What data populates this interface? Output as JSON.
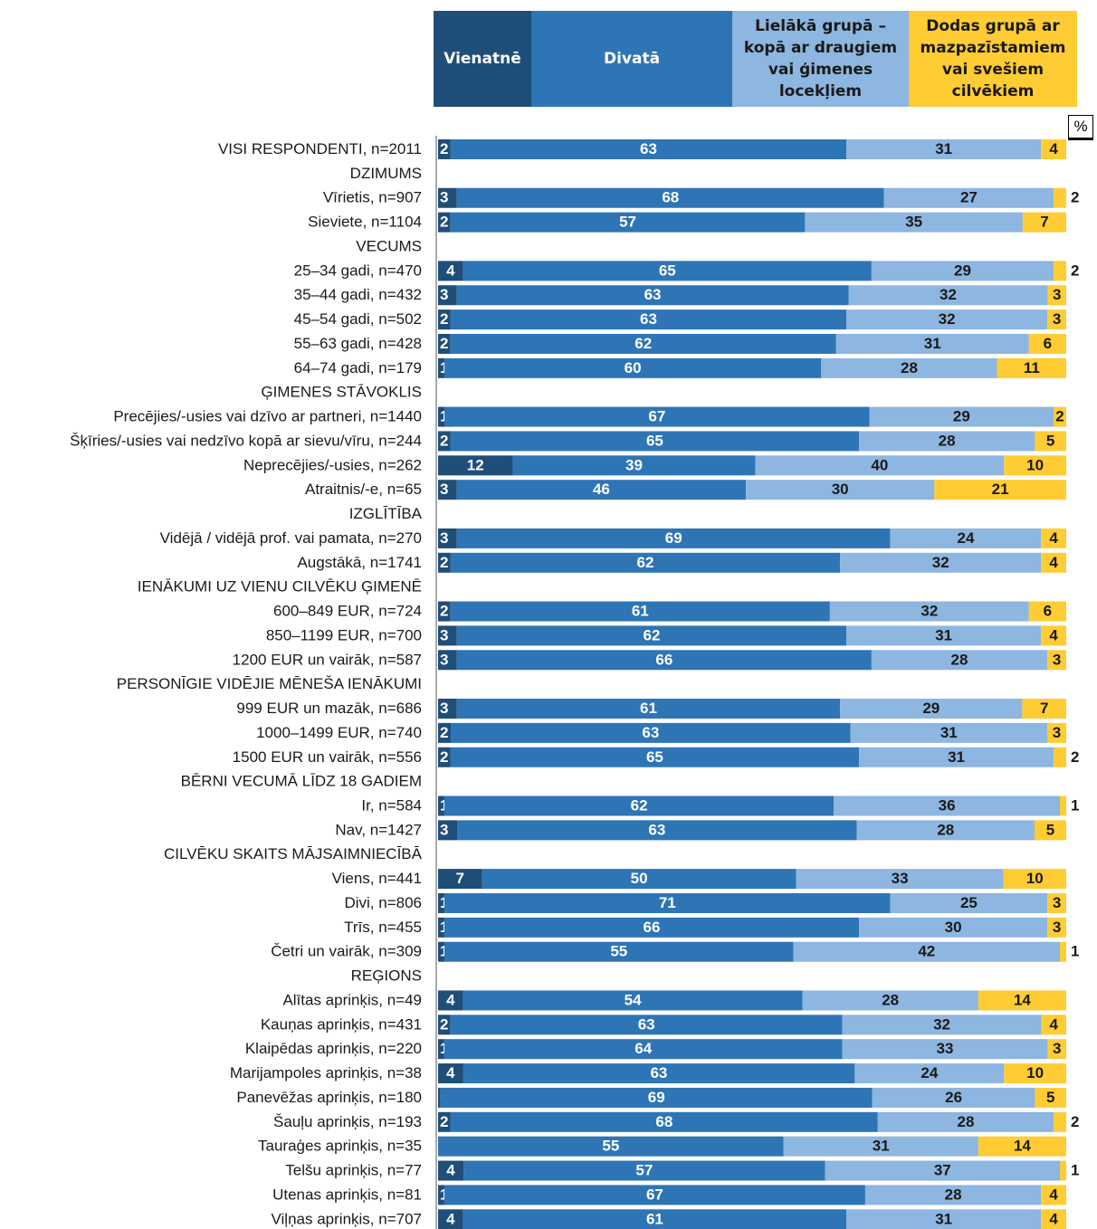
{
  "chart_data": {
    "type": "bar",
    "stacked": true,
    "unit_label": "%",
    "series": [
      {
        "name": "Vienatnē",
        "color": "#1f4e79"
      },
      {
        "name": "Divatā",
        "color": "#2e75b6"
      },
      {
        "name": "Lielākā grupā – kopā ar draugiem vai ģimenes locekļiem",
        "color": "#8db6e0"
      },
      {
        "name": "Dodas grupā ar mazpazīstamiem vai svešiem cilvēkiem",
        "color": "#ffcc33"
      }
    ],
    "rows": [
      {
        "label": "VISI RESPONDENTI, n=2011",
        "values": [
          2,
          63,
          31,
          4
        ],
        "labels": [
          "2",
          "63",
          "31",
          "4"
        ]
      },
      {
        "label": "DZIMUMS",
        "header": true
      },
      {
        "label": "Vīrietis, n=907",
        "values": [
          3,
          68,
          27,
          2
        ],
        "labels": [
          "3",
          "68",
          "27",
          "2"
        ]
      },
      {
        "label": "Sieviete, n=1104",
        "values": [
          2,
          57,
          35,
          7
        ],
        "labels": [
          "2",
          "57",
          "35",
          "7"
        ]
      },
      {
        "label": "VECUMS",
        "header": true
      },
      {
        "label": "25–34 gadi, n=470",
        "values": [
          4,
          65,
          29,
          2
        ],
        "labels": [
          "4",
          "65",
          "29",
          "2"
        ]
      },
      {
        "label": "35–44 gadi, n=432",
        "values": [
          3,
          63,
          32,
          3
        ],
        "labels": [
          "3",
          "63",
          "32",
          "3"
        ]
      },
      {
        "label": "45–54 gadi, n=502",
        "values": [
          2,
          63,
          32,
          3
        ],
        "labels": [
          "2",
          "63",
          "32",
          "3"
        ]
      },
      {
        "label": "55–63 gadi, n=428",
        "values": [
          2,
          62,
          31,
          6
        ],
        "labels": [
          "2",
          "62",
          "31",
          "6"
        ]
      },
      {
        "label": "64–74 gadi, n=179",
        "values": [
          1,
          60,
          28,
          11
        ],
        "labels": [
          "1",
          "60",
          "28",
          "11"
        ]
      },
      {
        "label": "ĢIMENES STĀVOKLIS",
        "header": true
      },
      {
        "label": "Precējies/-usies vai dzīvo ar partneri, n=1440",
        "values": [
          1,
          67,
          29,
          2
        ],
        "labels": [
          "1",
          "67",
          "29",
          "2"
        ]
      },
      {
        "label": "Šķīries/-usies vai nedzīvo kopā ar sievu/vīru, n=244",
        "values": [
          2,
          65,
          28,
          5
        ],
        "labels": [
          "2",
          "65",
          "28",
          "5"
        ]
      },
      {
        "label": "Neprecējies/-usies, n=262",
        "values": [
          12,
          39,
          40,
          10
        ],
        "labels": [
          "12",
          "39",
          "40",
          "10"
        ]
      },
      {
        "label": "Atraitnis/-e, n=65",
        "values": [
          3,
          46,
          30,
          21
        ],
        "labels": [
          "3",
          "46",
          "30",
          "21"
        ]
      },
      {
        "label": "IZGLĪTĪBA",
        "header": true
      },
      {
        "label": "Vidējā / vidējā prof. vai pamata, n=270",
        "values": [
          3,
          69,
          24,
          4
        ],
        "labels": [
          "3",
          "69",
          "24",
          "4"
        ]
      },
      {
        "label": "Augstākā, n=1741",
        "values": [
          2,
          62,
          32,
          4
        ],
        "labels": [
          "2",
          "62",
          "32",
          "4"
        ]
      },
      {
        "label": "IENĀKUMI UZ VIENU CILVĒKU ĢIMENĒ",
        "header": true
      },
      {
        "label": "600–849 EUR, n=724",
        "values": [
          2,
          61,
          32,
          6
        ],
        "labels": [
          "2",
          "61",
          "32",
          "6"
        ]
      },
      {
        "label": "850–1199 EUR, n=700",
        "values": [
          3,
          62,
          31,
          4
        ],
        "labels": [
          "3",
          "62",
          "31",
          "4"
        ]
      },
      {
        "label": "1200 EUR un vairāk, n=587",
        "values": [
          3,
          66,
          28,
          3
        ],
        "labels": [
          "3",
          "66",
          "28",
          "3"
        ]
      },
      {
        "label": "PERSONĪGIE VIDĒJIE MĒNEŠA IENĀKUMI",
        "header": true
      },
      {
        "label": "999 EUR un mazāk, n=686",
        "values": [
          3,
          61,
          29,
          7
        ],
        "labels": [
          "3",
          "61",
          "29",
          "7"
        ]
      },
      {
        "label": "1000–1499 EUR, n=740",
        "values": [
          2,
          63,
          31,
          3
        ],
        "labels": [
          "2",
          "63",
          "31",
          "3"
        ]
      },
      {
        "label": "1500 EUR un vairāk, n=556",
        "values": [
          2,
          65,
          31,
          2
        ],
        "labels": [
          "2",
          "65",
          "31",
          "2"
        ]
      },
      {
        "label": "BĒRNI VECUMĀ LĪDZ 18 GADIEM",
        "header": true
      },
      {
        "label": "Ir, n=584",
        "values": [
          1,
          62,
          36,
          1
        ],
        "labels": [
          "1",
          "62",
          "36",
          "1"
        ]
      },
      {
        "label": "Nav, n=1427",
        "values": [
          3,
          63,
          28,
          5
        ],
        "labels": [
          "3",
          "63",
          "28",
          "5"
        ]
      },
      {
        "label": "CILVĒKU SKAITS MĀJSAIMNIECĪBĀ",
        "header": true
      },
      {
        "label": "Viens, n=441",
        "values": [
          7,
          50,
          33,
          10
        ],
        "labels": [
          "7",
          "50",
          "33",
          "10"
        ]
      },
      {
        "label": "Divi, n=806",
        "values": [
          1,
          71,
          25,
          3
        ],
        "labels": [
          "1",
          "71",
          "25",
          "3"
        ]
      },
      {
        "label": "Trīs, n=455",
        "values": [
          1,
          66,
          30,
          3
        ],
        "labels": [
          "1",
          "66",
          "30",
          "3"
        ]
      },
      {
        "label": "Četri un vairāk, n=309",
        "values": [
          1,
          55,
          42,
          1
        ],
        "labels": [
          "1",
          "55",
          "42",
          "1"
        ]
      },
      {
        "label": "REĢIONS",
        "header": true
      },
      {
        "label": "Alītas aprinķis, n=49",
        "values": [
          4,
          54,
          28,
          14
        ],
        "labels": [
          "4",
          "54",
          "28",
          "14"
        ]
      },
      {
        "label": "Kauņas aprinķis, n=431",
        "values": [
          2,
          63,
          32,
          4
        ],
        "labels": [
          "2",
          "63",
          "32",
          "4"
        ]
      },
      {
        "label": "Klaipēdas aprinķis, n=220",
        "values": [
          1,
          64,
          33,
          3
        ],
        "labels": [
          "1",
          "64",
          "33",
          "3"
        ]
      },
      {
        "label": "Marijampoles aprinķis, n=38",
        "values": [
          4,
          63,
          24,
          10
        ],
        "labels": [
          "4",
          "63",
          "24",
          "10"
        ]
      },
      {
        "label": "Panevēžas aprinķis, n=180",
        "values": [
          0.4,
          69,
          26,
          5
        ],
        "labels": [
          "0,4",
          "69",
          "26",
          "5"
        ]
      },
      {
        "label": "Šauļu aprinķis, n=193",
        "values": [
          2,
          68,
          28,
          2
        ],
        "labels": [
          "2",
          "68",
          "28",
          "2"
        ]
      },
      {
        "label": "Tauraģes aprinķis, n=35",
        "values": [
          0,
          55,
          31,
          14
        ],
        "labels": [
          "",
          "55",
          "31",
          "14"
        ]
      },
      {
        "label": "Telšu aprinķis, n=77",
        "values": [
          4,
          57,
          37,
          1
        ],
        "labels": [
          "4",
          "57",
          "37",
          "1"
        ]
      },
      {
        "label": "Utenas aprinķis, n=81",
        "values": [
          1,
          67,
          28,
          4
        ],
        "labels": [
          "1",
          "67",
          "28",
          "4"
        ]
      },
      {
        "label": "Viļņas aprinķis, n=707",
        "values": [
          4,
          61,
          31,
          4
        ],
        "labels": [
          "4",
          "61",
          "31",
          "4"
        ]
      }
    ]
  }
}
